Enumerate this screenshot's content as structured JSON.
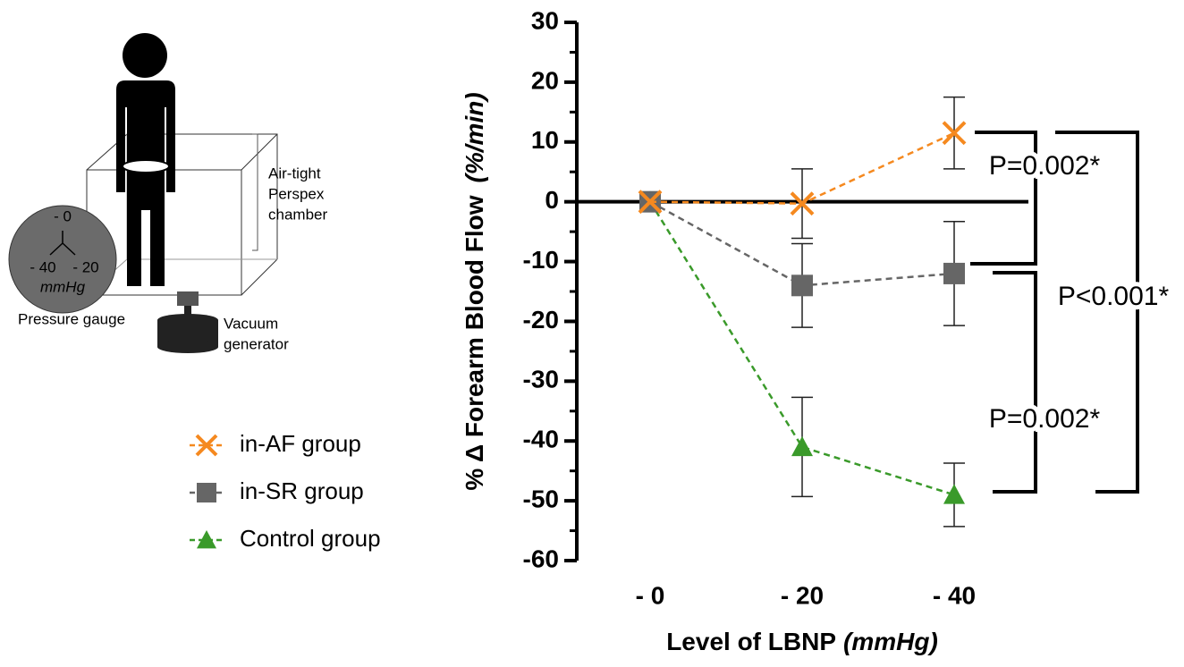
{
  "diagram": {
    "chamber_label": [
      "Air-tight",
      "Perspex",
      "chamber"
    ],
    "gauge_labels": [
      "- 0",
      "- 40",
      "- 20"
    ],
    "gauge_unit": "mmHg",
    "gauge_label": "Pressure gauge",
    "vacuum_label": [
      "Vacuum",
      "generator"
    ]
  },
  "chart_data": {
    "type": "line",
    "ylabel": "% Δ Forearm Blood Flow",
    "ylabel_unit": "(%/min)",
    "xlabel": "Level of LBNP",
    "xlabel_unit": "(mmHg)",
    "categories": [
      "- 0",
      "- 20",
      "- 40"
    ],
    "series": [
      {
        "name": "in-AF group",
        "color": "#f5891f",
        "marker": "x",
        "values": [
          0,
          -0.3,
          11.5
        ],
        "errors": [
          null,
          5.8,
          6
        ]
      },
      {
        "name": "in-SR group",
        "color": "#666666",
        "marker": "square",
        "values": [
          0,
          -14,
          -12
        ],
        "errors": [
          null,
          7,
          8.7
        ]
      },
      {
        "name": "Control group",
        "color": "#3a9a2a",
        "marker": "triangle",
        "values": [
          0,
          -41,
          -49
        ],
        "errors": [
          null,
          8.3,
          5.3
        ]
      }
    ],
    "ylim": [
      -60,
      30
    ],
    "yticks": [
      -60,
      -50,
      -40,
      -30,
      -20,
      -10,
      0,
      10,
      20,
      30
    ],
    "yminorticks": [
      -55,
      -45,
      -35,
      -25,
      -15,
      -5,
      5,
      15,
      25
    ],
    "annotations": [
      "P=0.002*",
      "P<0.001*",
      "P=0.002*"
    ]
  }
}
